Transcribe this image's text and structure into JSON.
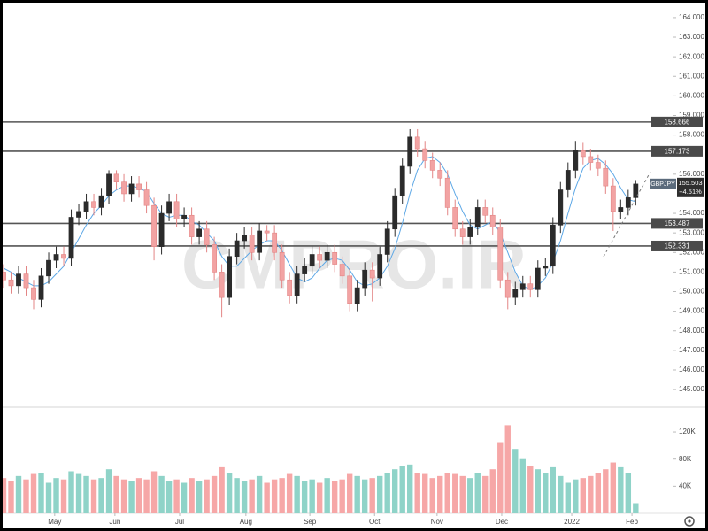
{
  "chart_data": {
    "type": "candlestick",
    "symbol": "GBPJPY",
    "watermark": "CMPRO.IR",
    "change": "+4.51%",
    "last_price": {
      "value": 155.503,
      "label": "155.503"
    },
    "up_color": "#2b2b2b",
    "down_color": "#f2a3a3",
    "ma_color": "#5ea8e6",
    "open": [
      151.0,
      150.6,
      150.3,
      150.9,
      150.2,
      149.6,
      150.8,
      151.6,
      151.9,
      151.7,
      153.8,
      154.1,
      154.6,
      154.3,
      154.9,
      156.0,
      155.6,
      155.0,
      155.5,
      155.2,
      154.4,
      152.3,
      154.0,
      154.6,
      153.7,
      153.9,
      152.8,
      153.2,
      152.4,
      151.0,
      149.7,
      151.8,
      152.6,
      152.9,
      152.0,
      153.1,
      153.0,
      152.0,
      150.6,
      149.8,
      150.9,
      151.3,
      151.9,
      151.6,
      152.0,
      151.4,
      150.8,
      149.4,
      150.2,
      151.1,
      150.7,
      151.9,
      153.2,
      154.9,
      156.4,
      157.9,
      157.3,
      156.7,
      156.2,
      155.8,
      154.3,
      153.2,
      152.8,
      153.3,
      154.3,
      153.9,
      153.3,
      150.6,
      149.7,
      150.1,
      150.4,
      150.1,
      151.2,
      151.3,
      153.4,
      155.2,
      156.2,
      157.2,
      156.9,
      156.6,
      156.3,
      155.4,
      154.1,
      154.3,
      154.8
    ],
    "high": [
      151.4,
      151.0,
      151.3,
      151.3,
      150.6,
      151.2,
      152.0,
      152.3,
      152.3,
      154.2,
      154.5,
      155.0,
      155.0,
      155.3,
      156.2,
      156.2,
      156.0,
      155.9,
      155.9,
      155.6,
      154.8,
      154.4,
      155.0,
      155.0,
      154.3,
      154.3,
      153.6,
      153.6,
      152.8,
      151.4,
      152.2,
      153.0,
      153.3,
      153.3,
      153.5,
      153.4,
      153.4,
      152.4,
      151.0,
      151.3,
      151.7,
      152.3,
      152.3,
      152.4,
      152.4,
      151.8,
      151.2,
      150.6,
      151.5,
      151.5,
      152.3,
      153.6,
      155.3,
      156.8,
      158.3,
      158.3,
      157.7,
      157.1,
      156.6,
      156.2,
      154.7,
      153.6,
      153.7,
      154.7,
      154.7,
      154.3,
      153.7,
      151.0,
      150.5,
      150.8,
      150.8,
      151.6,
      151.7,
      153.8,
      155.6,
      156.6,
      157.7,
      157.6,
      157.3,
      157.0,
      156.7,
      155.8,
      154.7,
      155.2,
      155.7
    ],
    "low": [
      150.2,
      149.9,
      149.9,
      149.8,
      149.1,
      149.2,
      150.4,
      151.2,
      151.3,
      151.3,
      153.4,
      153.7,
      153.9,
      153.9,
      154.5,
      155.2,
      154.6,
      154.6,
      154.8,
      154.0,
      151.6,
      151.9,
      153.6,
      153.3,
      153.3,
      152.4,
      152.4,
      152.0,
      150.6,
      148.7,
      149.3,
      151.4,
      152.2,
      151.6,
      151.6,
      152.6,
      151.6,
      150.2,
      149.4,
      149.4,
      150.5,
      150.9,
      151.2,
      151.2,
      151.0,
      150.4,
      149.0,
      149.0,
      149.8,
      149.5,
      150.3,
      151.5,
      152.8,
      154.5,
      156.0,
      156.9,
      156.3,
      155.8,
      155.4,
      153.9,
      152.8,
      152.4,
      152.4,
      152.9,
      153.5,
      152.9,
      150.2,
      149.1,
      149.3,
      149.7,
      149.7,
      149.7,
      150.8,
      150.9,
      153.0,
      154.8,
      155.8,
      156.5,
      156.2,
      155.9,
      155.0,
      153.1,
      153.7,
      153.9,
      154.4
    ],
    "close": [
      150.6,
      150.3,
      150.9,
      150.2,
      149.6,
      150.8,
      151.6,
      151.9,
      151.7,
      153.8,
      154.1,
      154.6,
      154.3,
      154.9,
      156.0,
      155.6,
      155.0,
      155.5,
      155.2,
      154.4,
      152.3,
      154.0,
      154.6,
      153.7,
      153.9,
      152.8,
      153.2,
      152.4,
      151.0,
      149.7,
      151.8,
      152.6,
      152.9,
      152.0,
      153.1,
      153.0,
      152.0,
      150.6,
      149.8,
      150.9,
      151.3,
      151.9,
      151.6,
      152.0,
      151.4,
      150.8,
      149.4,
      150.2,
      151.1,
      150.7,
      151.9,
      153.2,
      154.9,
      156.4,
      157.9,
      157.3,
      156.7,
      156.2,
      155.8,
      154.3,
      153.2,
      152.8,
      153.3,
      154.3,
      153.9,
      153.3,
      150.6,
      149.7,
      150.1,
      150.4,
      150.1,
      151.2,
      151.3,
      153.4,
      155.2,
      156.2,
      157.2,
      156.9,
      156.6,
      156.3,
      155.4,
      154.1,
      154.3,
      154.8,
      155.5
    ],
    "ma_values": [
      151.2,
      151.0,
      150.7,
      150.5,
      150.3,
      150.3,
      150.5,
      150.9,
      151.3,
      152.0,
      152.7,
      153.4,
      154.0,
      154.4,
      154.9,
      155.2,
      155.4,
      155.4,
      155.3,
      155.1,
      154.5,
      154.0,
      153.8,
      153.9,
      153.9,
      153.6,
      153.4,
      153.0,
      152.6,
      151.8,
      151.3,
      151.3,
      151.7,
      152.1,
      152.4,
      152.6,
      152.6,
      152.1,
      151.4,
      150.7,
      150.5,
      150.7,
      151.2,
      151.6,
      151.7,
      151.6,
      151.1,
      150.5,
      150.3,
      150.4,
      150.7,
      151.3,
      152.2,
      153.5,
      155.0,
      156.2,
      156.8,
      156.9,
      156.6,
      156.0,
      155.0,
      154.1,
      153.4,
      153.2,
      153.4,
      153.6,
      153.0,
      152.0,
      151.0,
      150.3,
      150.1,
      150.3,
      150.7,
      151.5,
      152.6,
      154.0,
      155.3,
      156.3,
      156.7,
      156.8,
      156.5,
      156.0,
      155.3,
      154.7,
      154.6
    ],
    "levels": [
      {
        "value": 158.666,
        "label": "158.666"
      },
      {
        "value": 157.173,
        "label": "157.173"
      },
      {
        "value": 153.487,
        "label": "153.487"
      },
      {
        "value": 152.331,
        "label": "152.331"
      }
    ],
    "ylim": [
      144.19,
      164.81
    ],
    "yticks": [
      {
        "value": 145,
        "label": "145.000"
      },
      {
        "value": 146,
        "label": "146.000"
      },
      {
        "value": 147,
        "label": "147.000"
      },
      {
        "value": 148,
        "label": "148.000"
      },
      {
        "value": 149,
        "label": "149.000"
      },
      {
        "value": 150,
        "label": "150.000"
      },
      {
        "value": 151,
        "label": "151.000"
      },
      {
        "value": 152,
        "label": "152.000"
      },
      {
        "value": 153,
        "label": "153.000"
      },
      {
        "value": 154,
        "label": "154.000"
      },
      {
        "value": 156,
        "label": "156.000"
      },
      {
        "value": 158,
        "label": "158.000"
      },
      {
        "value": 159,
        "label": "159.000"
      },
      {
        "value": 160,
        "label": "160.000"
      },
      {
        "value": 161,
        "label": "161.000"
      },
      {
        "value": 162,
        "label": "162.000"
      },
      {
        "value": 163,
        "label": "163.000"
      },
      {
        "value": 164,
        "label": "164.000"
      }
    ],
    "xlim": [
      -0.47,
      88.9
    ],
    "xticks": [
      {
        "value": 6.8,
        "label": "May"
      },
      {
        "value": 14.8,
        "label": "Jun"
      },
      {
        "value": 23.4,
        "label": "Jul"
      },
      {
        "value": 32.2,
        "label": "Aug"
      },
      {
        "value": 40.7,
        "label": "Sep"
      },
      {
        "value": 49.3,
        "label": "Oct"
      },
      {
        "value": 57.6,
        "label": "Nov"
      },
      {
        "value": 66.2,
        "label": "Dec"
      },
      {
        "value": 75.5,
        "label": "2022"
      },
      {
        "value": 83.5,
        "label": "Feb"
      }
    ],
    "volume": {
      "up_color": "#8fd3c8",
      "down_color": "#f6a7a7",
      "ylim": [
        0,
        154000
      ],
      "yticks": [
        {
          "value": 40000,
          "label": "40K"
        },
        {
          "value": 80000,
          "label": "80K"
        },
        {
          "value": 120000,
          "label": "120K"
        }
      ],
      "values": [
        52000,
        48000,
        55000,
        50000,
        58000,
        60000,
        45000,
        52000,
        50000,
        62000,
        58000,
        55000,
        50000,
        52000,
        65000,
        55000,
        50000,
        48000,
        52000,
        50000,
        62000,
        55000,
        48000,
        50000,
        45000,
        52000,
        48000,
        50000,
        55000,
        68000,
        60000,
        52000,
        48000,
        50000,
        55000,
        45000,
        50000,
        52000,
        58000,
        55000,
        48000,
        50000,
        45000,
        52000,
        48000,
        50000,
        58000,
        55000,
        50000,
        52000,
        55000,
        60000,
        65000,
        70000,
        72000,
        60000,
        58000,
        52000,
        55000,
        60000,
        58000,
        55000,
        52000,
        60000,
        55000,
        65000,
        105000,
        130000,
        95000,
        80000,
        70000,
        65000,
        60000,
        68000,
        55000,
        45000,
        50000,
        52000,
        55000,
        60000,
        65000,
        75000,
        68000,
        60000,
        15000
      ]
    }
  }
}
